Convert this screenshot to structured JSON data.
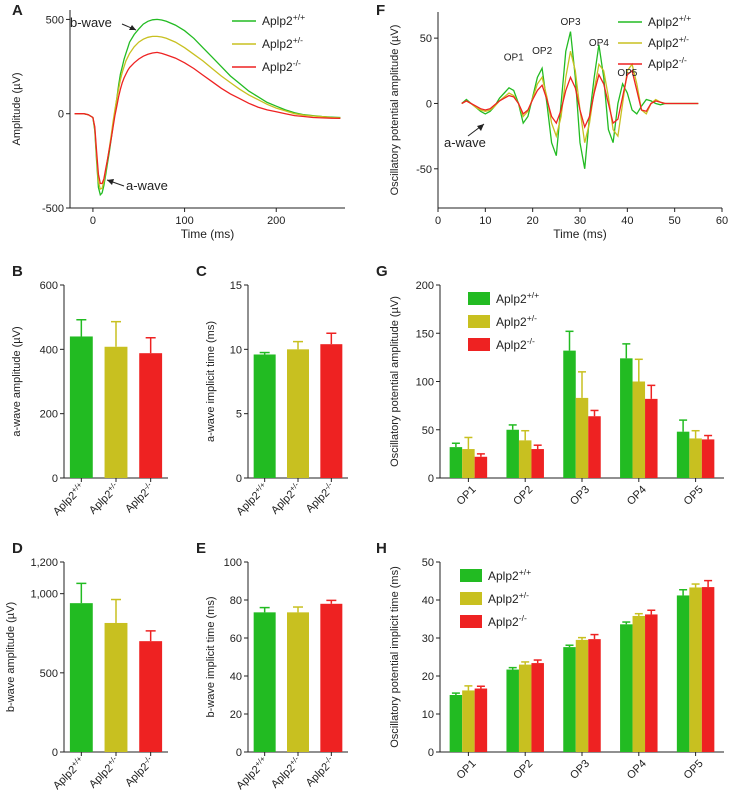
{
  "colors": {
    "wt": "#22bb22",
    "het": "#c8c020",
    "ko": "#ee2222",
    "axis": "#222222"
  },
  "legend_labels": [
    {
      "base": "Aplp2",
      "sup": "+/+"
    },
    {
      "base": "Aplp2",
      "sup": "+/-"
    },
    {
      "base": "Aplp2",
      "sup": "-/-"
    }
  ],
  "chart_data": [
    {
      "panel": "A",
      "type": "line",
      "xlabel": "Time (ms)",
      "ylabel": "Amplitude (µV)",
      "xlim": [
        -25,
        275
      ],
      "ylim": [
        -500,
        550
      ],
      "xticks": [
        0,
        100,
        200
      ],
      "yticks": [
        -500,
        0,
        500
      ],
      "annotations": [
        "b-wave",
        "a-wave"
      ],
      "series": [
        {
          "name": "Aplp2+/+",
          "x": [
            -20,
            -10,
            -5,
            0,
            2,
            4,
            6,
            8,
            10,
            12,
            14,
            16,
            18,
            20,
            22,
            24,
            26,
            28,
            30,
            32,
            34,
            36,
            38,
            40,
            45,
            50,
            55,
            60,
            65,
            70,
            75,
            80,
            90,
            100,
            110,
            120,
            130,
            140,
            150,
            160,
            170,
            180,
            190,
            200,
            210,
            220,
            230,
            240,
            250,
            260,
            270
          ],
          "y": [
            0,
            0,
            -5,
            -20,
            -90,
            -250,
            -390,
            -430,
            -420,
            -380,
            -320,
            -260,
            -200,
            -130,
            -60,
            10,
            80,
            150,
            210,
            250,
            290,
            320,
            350,
            380,
            420,
            450,
            475,
            490,
            498,
            500,
            497,
            490,
            470,
            440,
            400,
            350,
            300,
            250,
            200,
            160,
            120,
            90,
            60,
            40,
            20,
            5,
            -5,
            -10,
            -15,
            -18,
            -20
          ]
        },
        {
          "name": "Aplp2+/-",
          "x": [
            -20,
            -10,
            -5,
            0,
            2,
            4,
            6,
            8,
            10,
            12,
            14,
            16,
            18,
            20,
            22,
            24,
            26,
            28,
            30,
            32,
            34,
            36,
            38,
            40,
            45,
            50,
            55,
            60,
            65,
            70,
            75,
            80,
            90,
            100,
            110,
            120,
            130,
            140,
            150,
            160,
            170,
            180,
            190,
            200,
            210,
            220,
            230,
            240,
            250,
            260,
            270
          ],
          "y": [
            0,
            0,
            -5,
            -20,
            -80,
            -230,
            -360,
            -400,
            -395,
            -360,
            -300,
            -240,
            -180,
            -110,
            -40,
            20,
            80,
            130,
            180,
            220,
            250,
            280,
            300,
            320,
            355,
            380,
            395,
            405,
            410,
            410,
            407,
            400,
            380,
            350,
            315,
            280,
            240,
            200,
            165,
            130,
            100,
            75,
            50,
            30,
            15,
            0,
            -8,
            -12,
            -16,
            -20,
            -22
          ]
        },
        {
          "name": "Aplp2-/-",
          "x": [
            -20,
            -10,
            -5,
            0,
            2,
            4,
            6,
            8,
            10,
            12,
            14,
            16,
            18,
            20,
            22,
            24,
            26,
            28,
            30,
            32,
            34,
            36,
            38,
            40,
            45,
            50,
            55,
            60,
            65,
            70,
            75,
            80,
            90,
            100,
            110,
            120,
            130,
            140,
            150,
            160,
            170,
            180,
            190,
            200,
            210,
            220,
            230,
            240,
            250,
            260,
            270
          ],
          "y": [
            0,
            0,
            -5,
            -20,
            -70,
            -200,
            -320,
            -370,
            -370,
            -345,
            -290,
            -240,
            -185,
            -130,
            -70,
            -10,
            40,
            90,
            130,
            165,
            190,
            210,
            230,
            245,
            270,
            290,
            305,
            315,
            322,
            325,
            320,
            312,
            295,
            270,
            240,
            205,
            170,
            135,
            105,
            80,
            55,
            35,
            20,
            10,
            0,
            -10,
            -15,
            -20,
            -22,
            -24,
            -25
          ]
        }
      ]
    },
    {
      "panel": "F",
      "type": "line",
      "xlabel": "Time (ms)",
      "ylabel": "Oscillatory potential amplitude (µV)",
      "xlim": [
        0,
        60
      ],
      "ylim": [
        -80,
        70
      ],
      "xticks": [
        0,
        10,
        20,
        30,
        40,
        50,
        60
      ],
      "yticks": [
        -50,
        0,
        50
      ],
      "annotations": [
        "OP1",
        "OP2",
        "OP3",
        "OP4",
        "OP5",
        "a-wave"
      ],
      "series": [
        {
          "name": "Aplp2+/+",
          "x": [
            5,
            6,
            7,
            8,
            9,
            10,
            11,
            12,
            13,
            14,
            15,
            16,
            17,
            18,
            19,
            20,
            21,
            22,
            23,
            24,
            25,
            26,
            27,
            28,
            29,
            30,
            31,
            32,
            33,
            34,
            35,
            36,
            37,
            38,
            39,
            40,
            41,
            42,
            43,
            44,
            45,
            46,
            47,
            48,
            49,
            50,
            51,
            52,
            53,
            54,
            55
          ],
          "y": [
            0,
            3,
            0,
            -3,
            -6,
            -8,
            -6,
            -2,
            4,
            8,
            12,
            10,
            0,
            -15,
            -10,
            5,
            20,
            27,
            0,
            -30,
            -40,
            0,
            40,
            55,
            20,
            -30,
            -50,
            -10,
            20,
            45,
            20,
            -20,
            -30,
            0,
            15,
            8,
            -5,
            -8,
            -2,
            3,
            2,
            0,
            -1,
            0,
            0,
            0,
            0,
            0,
            0,
            0,
            0
          ]
        },
        {
          "name": "Aplp2+/-",
          "x": [
            5,
            6,
            7,
            8,
            9,
            10,
            11,
            12,
            13,
            14,
            15,
            16,
            17,
            18,
            19,
            20,
            21,
            22,
            23,
            24,
            25,
            26,
            27,
            28,
            29,
            30,
            31,
            32,
            33,
            34,
            35,
            36,
            37,
            38,
            39,
            40,
            41,
            42,
            43,
            44,
            45,
            46,
            47,
            48,
            49,
            50,
            51,
            52,
            53,
            54,
            55
          ],
          "y": [
            0,
            2,
            0,
            -3,
            -5,
            -6,
            -5,
            -2,
            2,
            5,
            8,
            6,
            0,
            -10,
            -6,
            4,
            15,
            20,
            5,
            -15,
            -25,
            -10,
            20,
            40,
            25,
            -5,
            -30,
            -15,
            10,
            30,
            25,
            5,
            -20,
            -25,
            0,
            25,
            30,
            15,
            -5,
            -8,
            0,
            3,
            1,
            0,
            0,
            0,
            0,
            0,
            0,
            0,
            0
          ]
        },
        {
          "name": "Aplp2-/-",
          "x": [
            5,
            6,
            7,
            8,
            9,
            10,
            11,
            12,
            13,
            14,
            15,
            16,
            17,
            18,
            19,
            20,
            21,
            22,
            23,
            24,
            25,
            26,
            27,
            28,
            29,
            30,
            31,
            32,
            33,
            34,
            35,
            36,
            37,
            38,
            39,
            40,
            41,
            42,
            43,
            44,
            45,
            46,
            47,
            48,
            49,
            50,
            51,
            52,
            53,
            54,
            55
          ],
          "y": [
            0,
            2,
            0,
            -2,
            -4,
            -5,
            -4,
            -1,
            2,
            4,
            6,
            5,
            0,
            -8,
            -5,
            3,
            10,
            14,
            3,
            -10,
            -15,
            -5,
            10,
            20,
            12,
            -5,
            -18,
            -10,
            8,
            22,
            15,
            0,
            -15,
            -12,
            5,
            22,
            25,
            10,
            -5,
            -6,
            0,
            2,
            1,
            0,
            0,
            0,
            0,
            0,
            0,
            0,
            0
          ]
        }
      ]
    },
    {
      "panel": "B",
      "type": "bar",
      "ylabel": "a-wave amplitude (µV)",
      "ylim": [
        0,
        600
      ],
      "yticks": [
        0,
        200,
        400,
        600
      ],
      "categories": [
        "Aplp2+/+",
        "Aplp2+/-",
        "Aplp2-/-"
      ],
      "values": [
        440,
        408,
        388
      ],
      "errors": [
        52,
        78,
        48
      ]
    },
    {
      "panel": "C",
      "type": "bar",
      "ylabel": "a-wave implicit time (ms)",
      "ylim": [
        0,
        15
      ],
      "yticks": [
        0,
        5,
        10,
        15
      ],
      "categories": [
        "Aplp2+/+",
        "Aplp2+/-",
        "Aplp2-/-"
      ],
      "values": [
        9.6,
        10.0,
        10.4
      ],
      "errors": [
        0.15,
        0.6,
        0.85
      ]
    },
    {
      "panel": "D",
      "type": "bar",
      "ylabel": "b-wave amplitude (µV)",
      "ylim": [
        0,
        1200
      ],
      "yticks": [
        0,
        500,
        1000,
        1200
      ],
      "ytick_labels": [
        "0",
        "500",
        "1,000",
        "1,200"
      ],
      "categories": [
        "Aplp2+/+",
        "Aplp2+/-",
        "Aplp2-/-"
      ],
      "values": [
        940,
        815,
        700
      ],
      "errors": [
        125,
        148,
        65
      ]
    },
    {
      "panel": "E",
      "type": "bar",
      "ylabel": "b-wave implicit time (ms)",
      "ylim": [
        0,
        100
      ],
      "yticks": [
        0,
        20,
        40,
        60,
        80,
        100
      ],
      "categories": [
        "Aplp2+/+",
        "Aplp2+/-",
        "Aplp2-/-"
      ],
      "values": [
        73.5,
        73.5,
        78
      ],
      "errors": [
        2.5,
        2.8,
        1.8
      ]
    },
    {
      "panel": "G",
      "type": "bar",
      "ylabel": "Oscillatory potential amplitude (µV)",
      "ylim": [
        0,
        200
      ],
      "yticks": [
        0,
        50,
        100,
        150,
        200
      ],
      "categories": [
        "OP1",
        "OP2",
        "OP3",
        "OP4",
        "OP5"
      ],
      "series": [
        {
          "name": "Aplp2+/+",
          "values": [
            32,
            50,
            132,
            124,
            48
          ],
          "errors": [
            4,
            5,
            20,
            15,
            12
          ]
        },
        {
          "name": "Aplp2+/-",
          "values": [
            30,
            39,
            83,
            100,
            41
          ],
          "errors": [
            12,
            10,
            27,
            23,
            8
          ]
        },
        {
          "name": "Aplp2-/-",
          "values": [
            22,
            30,
            64,
            82,
            40
          ],
          "errors": [
            3,
            4,
            6,
            14,
            4
          ]
        }
      ]
    },
    {
      "panel": "H",
      "type": "bar",
      "ylabel": "Oscillatory potential implicit time (ms)",
      "ylim": [
        0,
        50
      ],
      "yticks": [
        0,
        10,
        20,
        30,
        40,
        50
      ],
      "categories": [
        "OP1",
        "OP2",
        "OP3",
        "OP4",
        "OP5"
      ],
      "series": [
        {
          "name": "Aplp2+/+",
          "values": [
            15,
            21.7,
            27.6,
            33.6,
            41.2
          ],
          "errors": [
            0.5,
            0.5,
            0.5,
            0.6,
            1.5
          ]
        },
        {
          "name": "Aplp2+/-",
          "values": [
            16.2,
            23,
            29.5,
            35.8,
            43.3
          ],
          "errors": [
            1.2,
            0.7,
            0.6,
            0.6,
            0.9
          ]
        },
        {
          "name": "Aplp2-/-",
          "values": [
            16.7,
            23.4,
            29.7,
            36.2,
            43.4
          ],
          "errors": [
            0.6,
            0.8,
            1.2,
            1.1,
            1.7
          ]
        }
      ]
    }
  ]
}
